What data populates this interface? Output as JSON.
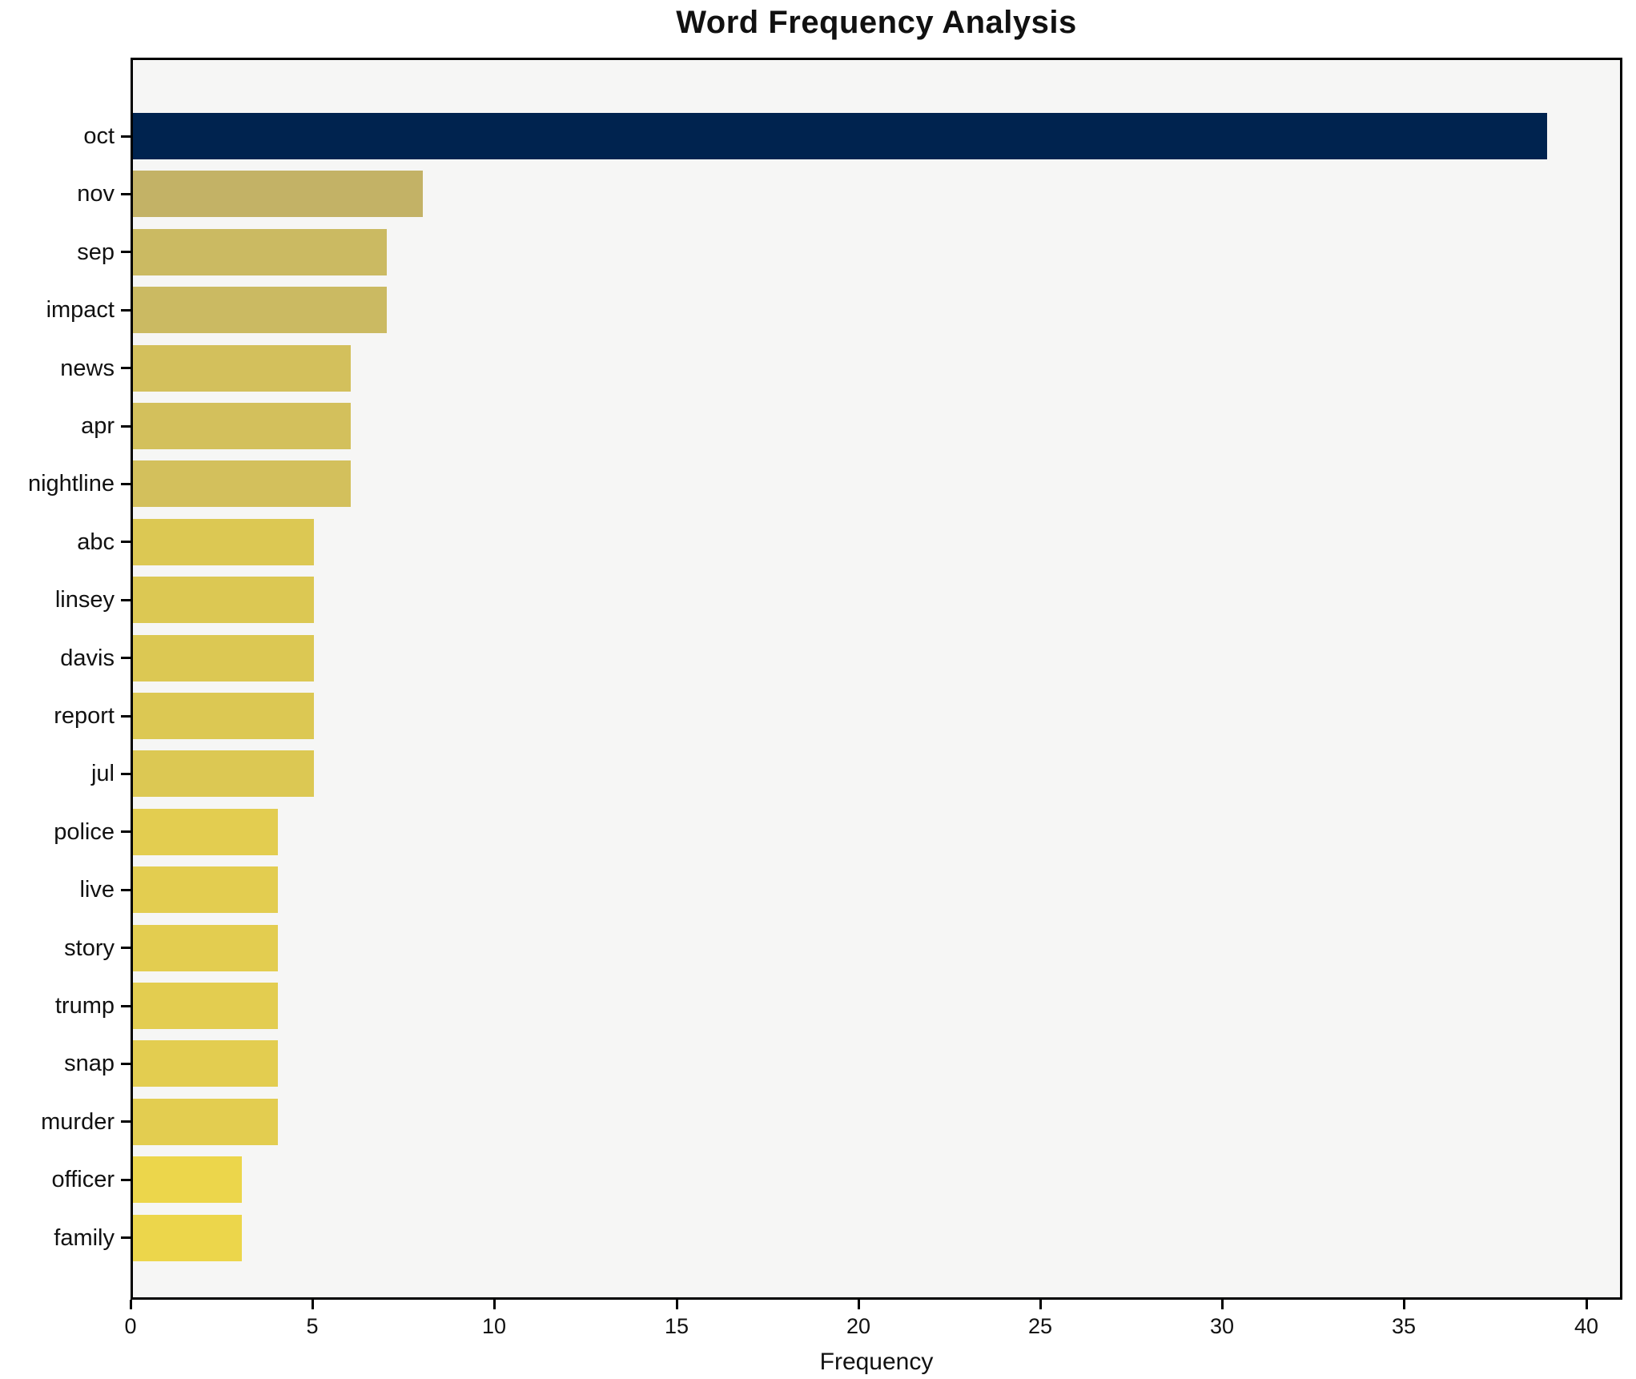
{
  "chart_data": {
    "type": "bar",
    "orientation": "horizontal",
    "title": "Word Frequency Analysis",
    "xlabel": "Frequency",
    "ylabel": "",
    "categories": [
      "oct",
      "nov",
      "sep",
      "impact",
      "news",
      "apr",
      "nightline",
      "abc",
      "linsey",
      "davis",
      "report",
      "jul",
      "police",
      "live",
      "story",
      "trump",
      "snap",
      "murder",
      "officer",
      "family"
    ],
    "values": [
      39,
      8,
      7,
      7,
      6,
      6,
      6,
      5,
      5,
      5,
      5,
      5,
      4,
      4,
      4,
      4,
      4,
      4,
      3,
      3
    ],
    "bar_colors": [
      "#00234f",
      "#c3b266",
      "#cbba62",
      "#cbba62",
      "#d3c05c",
      "#d3c05c",
      "#d3c05c",
      "#dcc853",
      "#dcc853",
      "#dcc853",
      "#dcc853",
      "#dcc853",
      "#e3cd50",
      "#e3cd50",
      "#e3cd50",
      "#e3cd50",
      "#e3cd50",
      "#e3cd50",
      "#ecd64b",
      "#ecd64b"
    ],
    "xlim": [
      0,
      41
    ],
    "x_ticks": [
      0,
      5,
      10,
      15,
      20,
      25,
      30,
      35,
      40
    ],
    "grid": false,
    "legend": null,
    "plot_bg_color": "#f6f6f5",
    "figure_bg_color": "#ffffff",
    "max_bar_color": "#00234f",
    "min_bar_color": "#ecd64b",
    "title_color": "#111111",
    "axis_color": "#000000"
  }
}
